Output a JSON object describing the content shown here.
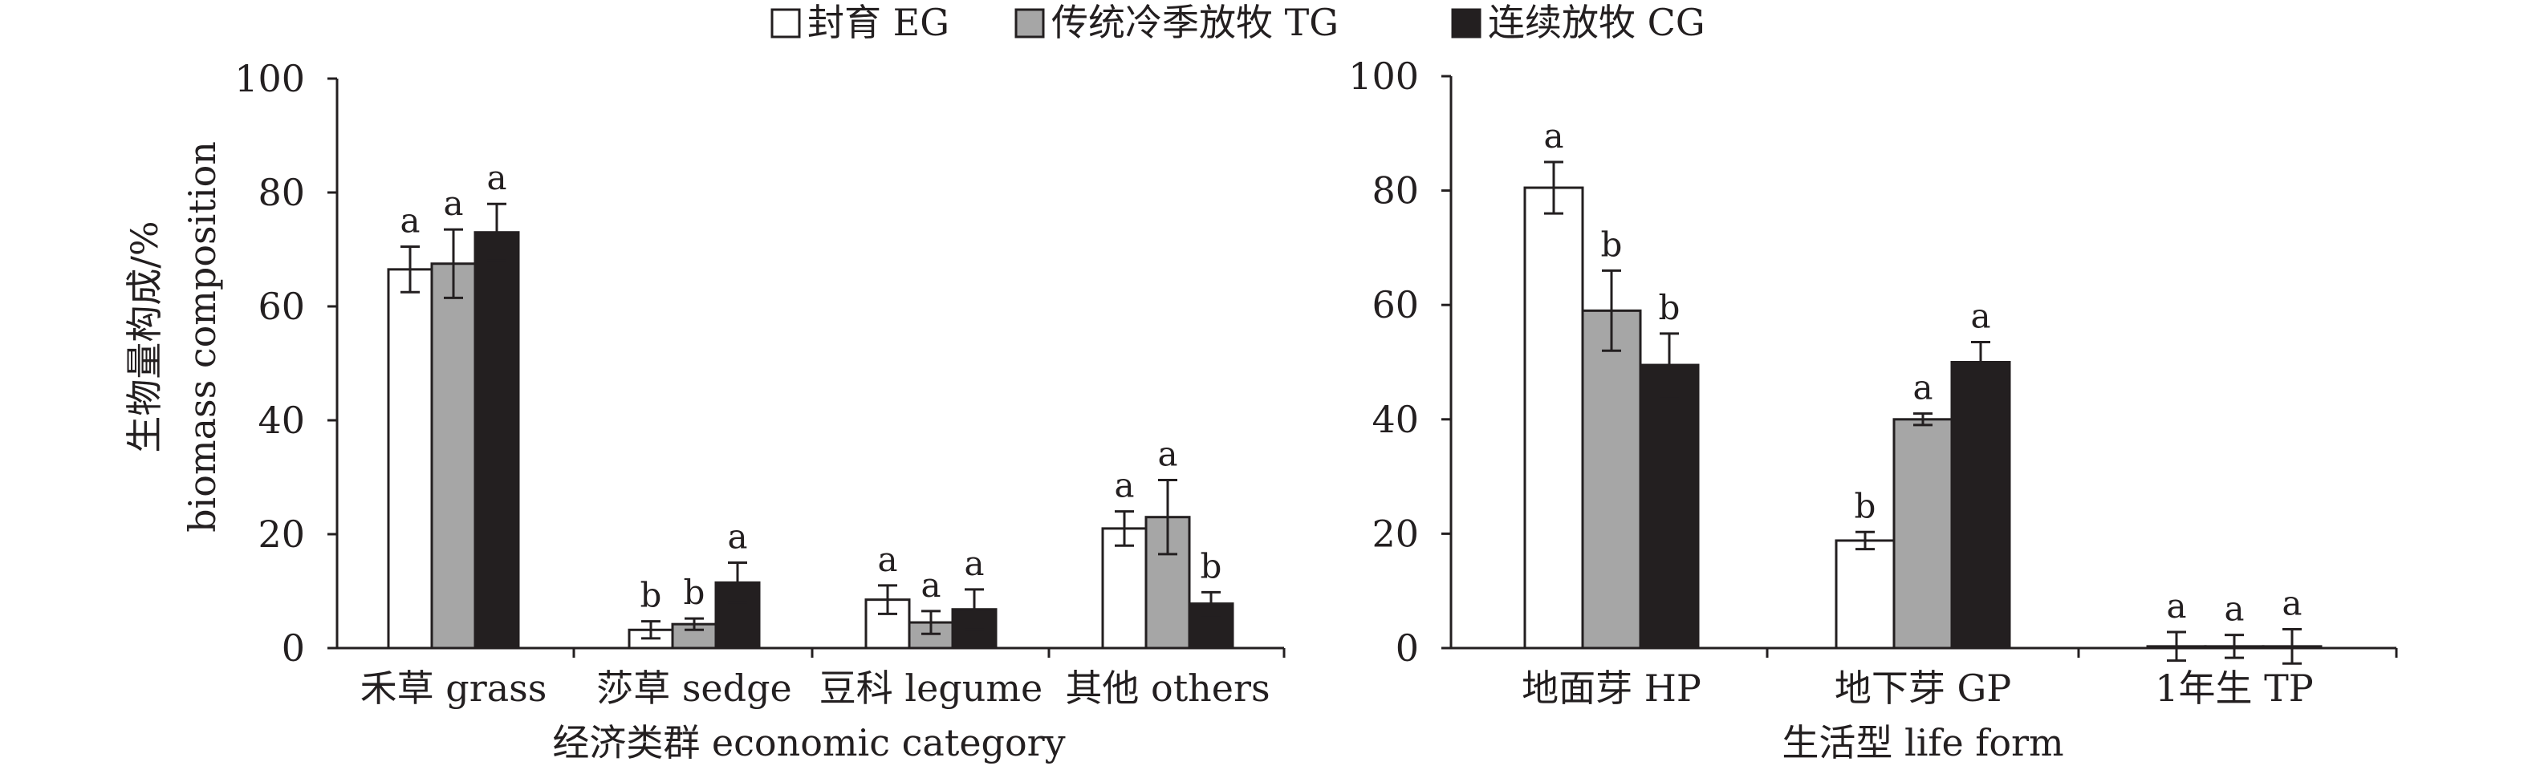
{
  "legend": [
    {
      "label": "封育 EG",
      "fill": "#ffffff"
    },
    {
      "label": "传统冷季放牧 TG",
      "fill": "#a6a6a6"
    },
    {
      "label": "连续放牧 CG",
      "fill": "#231f20"
    }
  ],
  "chart_data": [
    {
      "type": "bar",
      "series_names": [
        "封育 EG",
        "传统冷季放牧 TG",
        "连续放牧 CG"
      ],
      "categories": [
        "禾草 grass",
        "莎草 sedge",
        "豆科 legume",
        "其他 others"
      ],
      "series": [
        {
          "name": "封育 EG",
          "values": [
            66.5,
            3.2,
            8.5,
            21.0
          ],
          "errors": [
            4.0,
            1.5,
            2.5,
            3.0
          ],
          "sig": [
            "a",
            "b",
            "a",
            "a"
          ]
        },
        {
          "name": "传统冷季放牧 TG",
          "values": [
            67.5,
            4.2,
            4.5,
            23.0
          ],
          "errors": [
            6.0,
            1.0,
            2.0,
            6.5
          ],
          "sig": [
            "a",
            "b",
            "a",
            "a"
          ]
        },
        {
          "name": "连续放牧 CG",
          "values": [
            73.0,
            11.5,
            6.8,
            7.8
          ],
          "errors": [
            5.0,
            3.5,
            3.5,
            2.0
          ],
          "sig": [
            "a",
            "a",
            "a",
            "b"
          ]
        }
      ],
      "ylabel_lines": [
        "生物量构成/%",
        "biomass composition"
      ],
      "xlabel": "经济类群 economic category",
      "ylim": [
        0,
        100
      ],
      "yticks": [
        0,
        20,
        40,
        60,
        80,
        100
      ],
      "ytick_labels": [
        "0",
        "20",
        "40",
        "60",
        "80",
        "100"
      ],
      "grid": false
    },
    {
      "type": "bar",
      "series_names": [
        "封育 EG",
        "传统冷季放牧 TG",
        "连续放牧 CG"
      ],
      "categories": [
        "地面芽 HP",
        "地下芽 GP",
        "1年生 TP"
      ],
      "series": [
        {
          "name": "封育 EG",
          "values": [
            80.5,
            18.8,
            0.3
          ],
          "errors": [
            4.5,
            1.5,
            2.5
          ],
          "sig": [
            "a",
            "b",
            "a"
          ]
        },
        {
          "name": "传统冷季放牧 TG",
          "values": [
            59.0,
            40.0,
            0.3
          ],
          "errors": [
            7.0,
            1.0,
            2.0
          ],
          "sig": [
            "b",
            "a",
            "a"
          ]
        },
        {
          "name": "连续放牧 CG",
          "values": [
            49.5,
            50.0,
            0.3
          ],
          "errors": [
            5.5,
            3.5,
            3.0
          ],
          "sig": [
            "b",
            "a",
            "a"
          ]
        }
      ],
      "xlabel": "生活型 life form",
      "ylim": [
        0,
        100
      ],
      "yticks": [
        0,
        20,
        40,
        60,
        80,
        100
      ],
      "ytick_labels": [
        "0",
        "20",
        "40",
        "60",
        "80",
        "100"
      ],
      "grid": false
    }
  ]
}
